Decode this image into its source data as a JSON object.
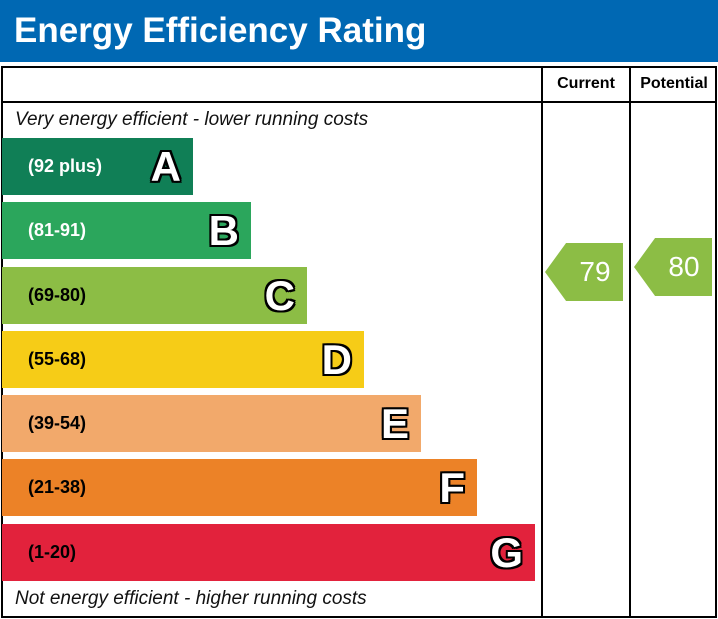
{
  "title": "Energy Efficiency Rating",
  "chart_data": {
    "type": "bar",
    "columns": {
      "current": "Current",
      "potential": "Potential"
    },
    "top_note": "Very energy efficient - lower running costs",
    "bottom_note": "Not energy efficient - higher running costs",
    "bands": [
      {
        "letter": "A",
        "range": "(92 plus)",
        "color": "#107f56",
        "text_color": "#ffffff"
      },
      {
        "letter": "B",
        "range": "(81-91)",
        "color": "#2ba65c",
        "text_color": "#ffffff"
      },
      {
        "letter": "C",
        "range": "(69-80)",
        "color": "#8cbd45",
        "text_color": "#000000"
      },
      {
        "letter": "D",
        "range": "(55-68)",
        "color": "#f6cc17",
        "text_color": "#000000"
      },
      {
        "letter": "E",
        "range": "(39-54)",
        "color": "#f2a96b",
        "text_color": "#000000"
      },
      {
        "letter": "F",
        "range": "(21-38)",
        "color": "#ec8227",
        "text_color": "#000000"
      },
      {
        "letter": "G",
        "range": "(1-20)",
        "color": "#e2223c",
        "text_color": "#000000"
      }
    ],
    "current": {
      "value": "79",
      "band": "C",
      "color": "#8cbd45"
    },
    "potential": {
      "value": "80",
      "band": "C",
      "color": "#8cbd45"
    }
  }
}
